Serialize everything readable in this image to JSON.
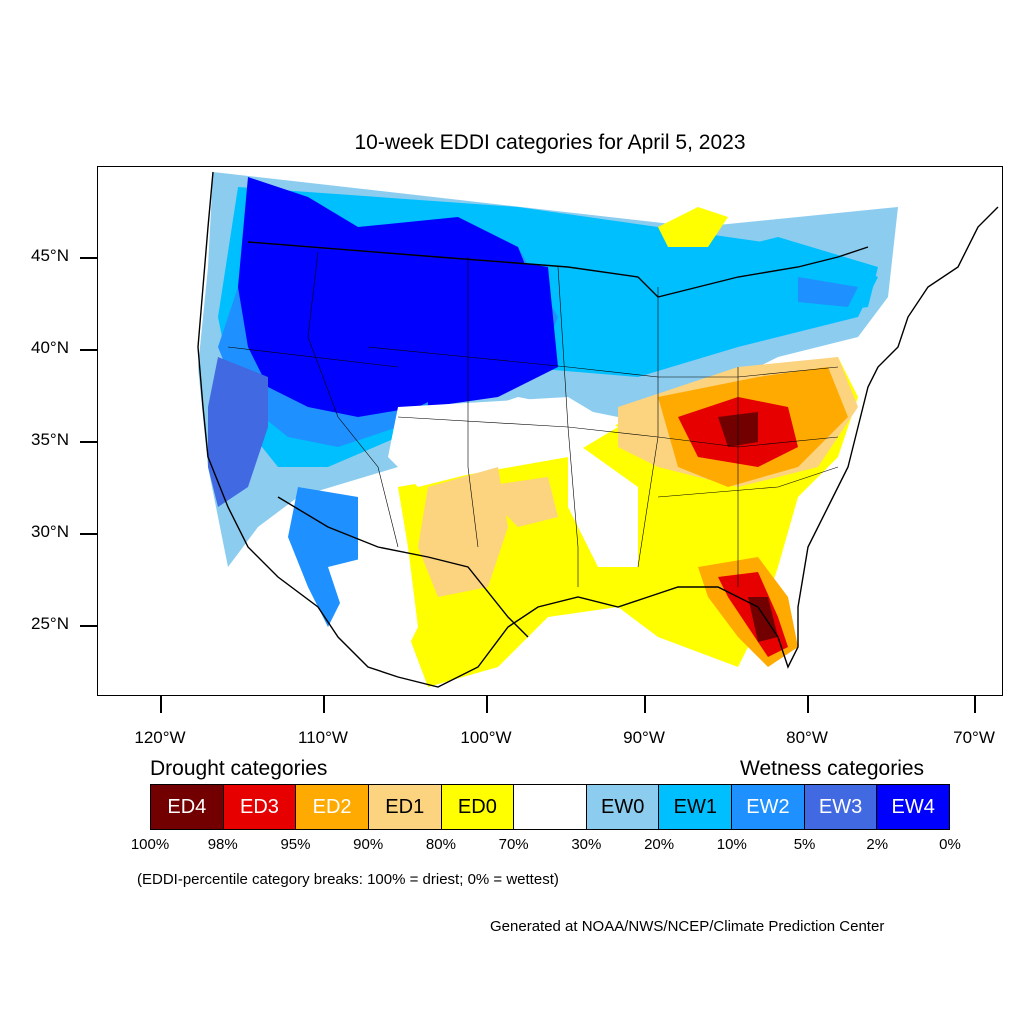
{
  "title": "10-week EDDI categories for April 5, 2023",
  "lat_labels": [
    "45°N",
    "40°N",
    "35°N",
    "30°N",
    "25°N"
  ],
  "lon_labels": [
    "120°W",
    "110°W",
    "100°W",
    "90°W",
    "80°W",
    "70°W"
  ],
  "legend": {
    "drought_heading": "Drought categories",
    "wetness_heading": "Wetness categories",
    "categories": [
      {
        "label": "ED4",
        "color": "#730000",
        "text_color": "#ffffff"
      },
      {
        "label": "ED3",
        "color": "#e60000",
        "text_color": "#ffffff"
      },
      {
        "label": "ED2",
        "color": "#ffaa00",
        "text_color": "#ffffff"
      },
      {
        "label": "ED1",
        "color": "#fcd37f",
        "text_color": "#000000"
      },
      {
        "label": "ED0",
        "color": "#ffff00",
        "text_color": "#000000"
      },
      {
        "label": "",
        "color": "#ffffff",
        "text_color": "#000000"
      },
      {
        "label": "EW0",
        "color": "#8ccdef",
        "text_color": "#000000"
      },
      {
        "label": "EW1",
        "color": "#00bfff",
        "text_color": "#000000"
      },
      {
        "label": "EW2",
        "color": "#1e90ff",
        "text_color": "#ffffff"
      },
      {
        "label": "EW3",
        "color": "#4169e1",
        "text_color": "#ffffff"
      },
      {
        "label": "EW4",
        "color": "#0000ff",
        "text_color": "#ffffff"
      }
    ],
    "breaks": [
      "100%",
      "98%",
      "95%",
      "90%",
      "80%",
      "70%",
      "30%",
      "20%",
      "10%",
      "5%",
      "2%",
      "0%"
    ]
  },
  "note": "(EDDI-percentile category breaks: 100% = driest; 0% = wettest)",
  "credit": "Generated at NOAA/NWS/NCEP/Climate Prediction Center"
}
